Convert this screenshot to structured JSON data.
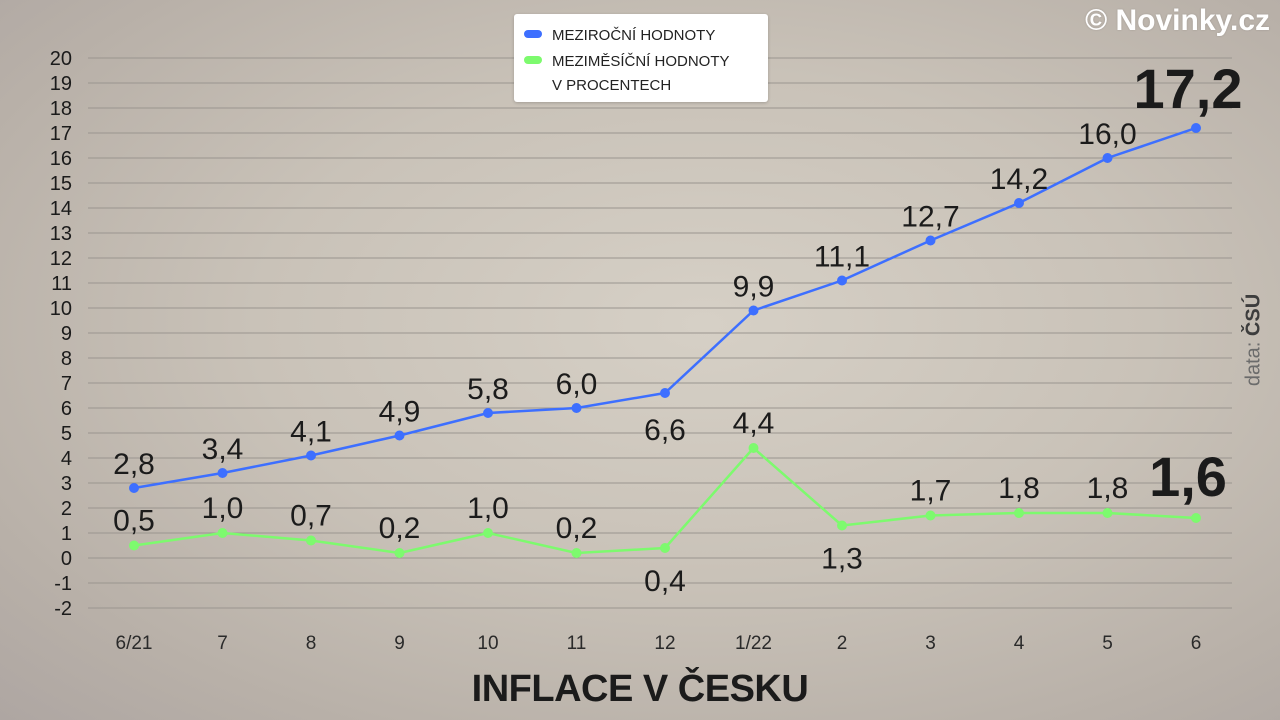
{
  "brand": "© Novinky.cz",
  "source": {
    "prefix": "data:",
    "name": "ČSÚ"
  },
  "colors": {
    "yoy": "#3d6fff",
    "mom": "#7dfa6e",
    "grid": "#9a958f",
    "text": "#1b1b1b"
  },
  "chart_data": {
    "type": "line",
    "title": "INFLACE V ČESKU",
    "categories": [
      "6/21",
      "7",
      "8",
      "9",
      "10",
      "11",
      "12",
      "1/22",
      "2",
      "3",
      "4",
      "5",
      "6"
    ],
    "ylim": [
      -2,
      20
    ],
    "yticks": [
      "-2",
      "-1",
      "0",
      "1",
      "2",
      "3",
      "4",
      "5",
      "6",
      "7",
      "8",
      "9",
      "10",
      "11",
      "12",
      "13",
      "14",
      "15",
      "16",
      "17",
      "18",
      "19",
      "20"
    ],
    "grid": true,
    "legend_position": "top-center",
    "legend_title": "V PROCENTECH",
    "series": [
      {
        "name": "MEZIROČNÍ HODNOTY",
        "values": [
          2.8,
          3.4,
          4.1,
          4.9,
          5.8,
          6.0,
          6.6,
          9.9,
          11.1,
          12.7,
          14.2,
          16.0,
          17.2
        ],
        "labels": [
          "2,8",
          "3,4",
          "4,1",
          "4,9",
          "5,8",
          "6,0",
          "6,6",
          "9,9",
          "11,1",
          "12,7",
          "14,2",
          "16,0",
          "17,2"
        ]
      },
      {
        "name": "MEZIMĚSÍČNÍ HODNOTY",
        "values": [
          0.5,
          1.0,
          0.7,
          0.2,
          1.0,
          0.2,
          0.4,
          4.4,
          1.3,
          1.7,
          1.8,
          1.8,
          1.6
        ],
        "labels": [
          "0,5",
          "1,0",
          "0,7",
          "0,2",
          "1,0",
          "0,2",
          "0,4",
          "4,4",
          "1,3",
          "1,7",
          "1,8",
          "1,8",
          "1,6"
        ]
      }
    ]
  }
}
